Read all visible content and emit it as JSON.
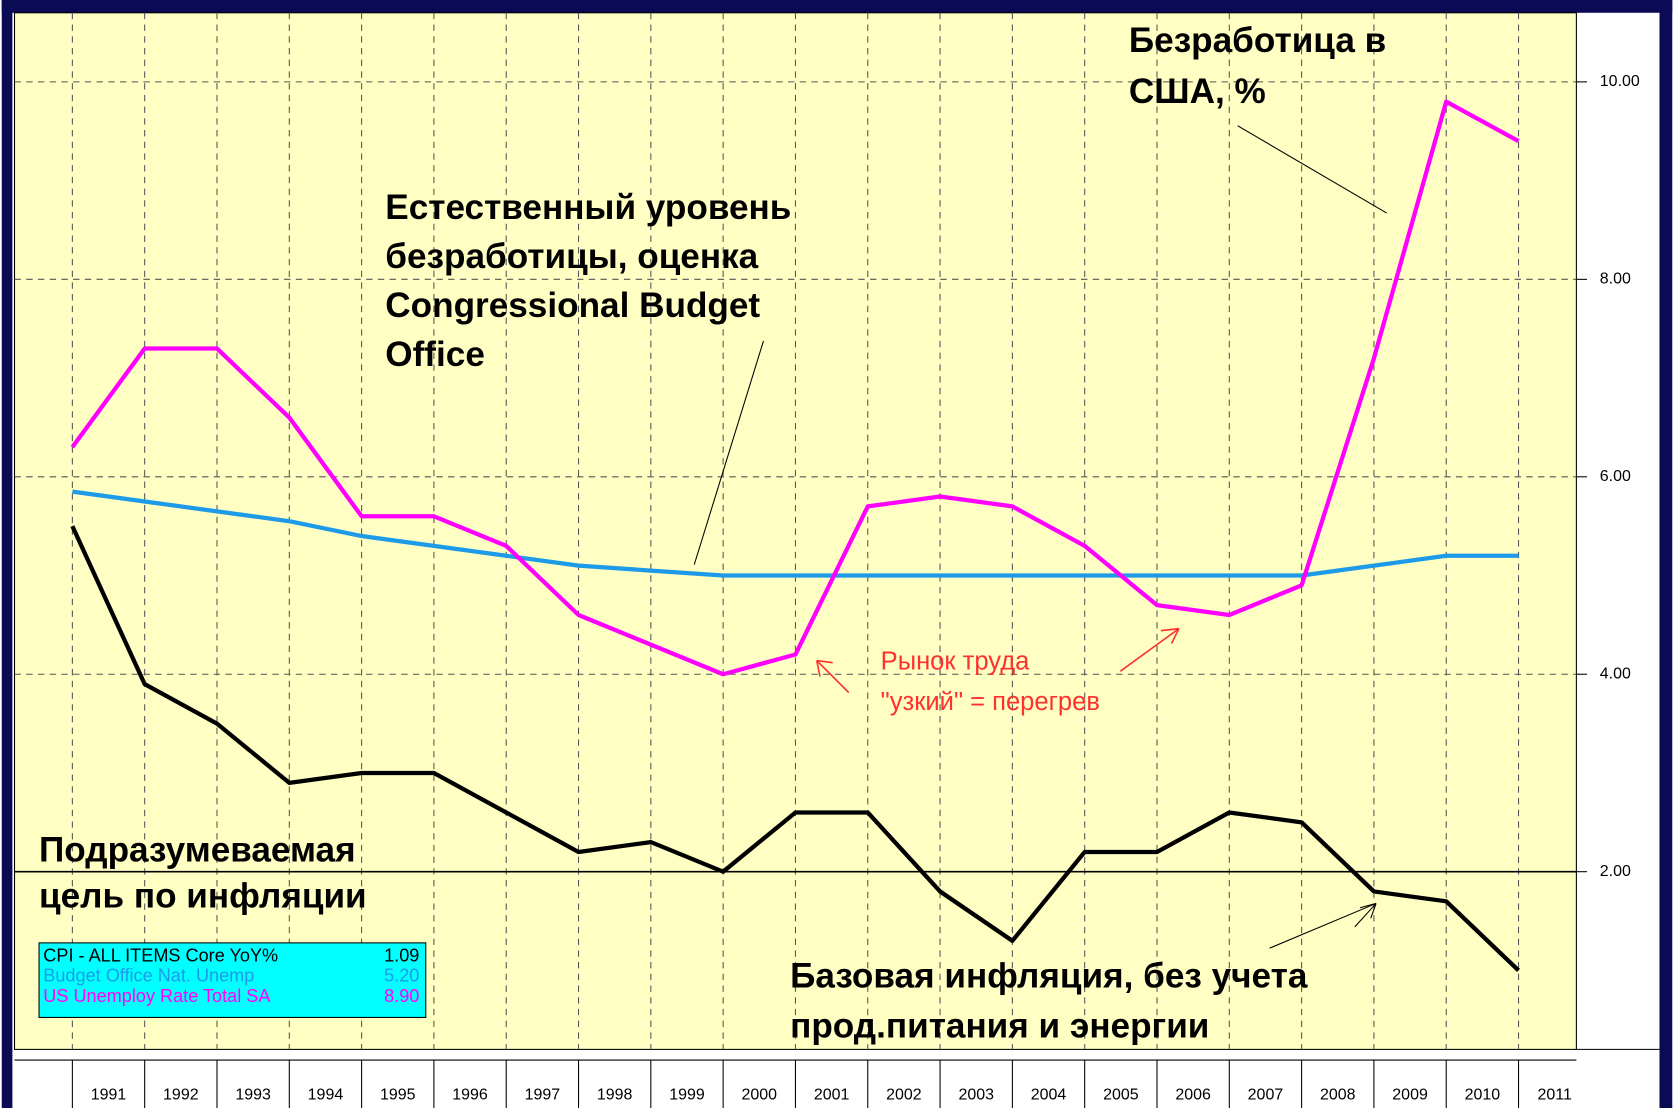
{
  "chart_data": {
    "type": "line",
    "xlim": [
      1990.2,
      2011.8
    ],
    "xticks": [
      1991,
      1992,
      1993,
      1994,
      1995,
      1996,
      1997,
      1998,
      1999,
      2000,
      2001,
      2002,
      2003,
      2004,
      2005,
      2006,
      2007,
      2008,
      2009,
      2010,
      2011
    ],
    "ylim": [
      0.2,
      10.7
    ],
    "yticks": [
      {
        "value": 2,
        "label": "2.00"
      },
      {
        "value": 4,
        "label": "4.00"
      },
      {
        "value": 6,
        "label": "6.00"
      },
      {
        "value": 8,
        "label": "8.00"
      },
      {
        "value": 10,
        "label": "10.00"
      }
    ],
    "grid": true,
    "reference_line": 2,
    "x": [
      1991,
      1992,
      1993,
      1994,
      1995,
      1996,
      1997,
      1998,
      1999,
      2000,
      2001,
      2002,
      2003,
      2004,
      2005,
      2006,
      2007,
      2008,
      2009,
      2010,
      2011
    ],
    "series": [
      {
        "name": "CPI - ALL ITEMS Core YoY%",
        "color": "#000000",
        "latest": {
          "value": 1.09,
          "label": "1.09"
        },
        "values": [
          5.5,
          3.9,
          3.5,
          2.9,
          3.0,
          3.0,
          2.6,
          2.2,
          2.3,
          2.0,
          2.6,
          2.6,
          1.8,
          1.3,
          2.2,
          2.2,
          2.6,
          2.5,
          1.8,
          1.7,
          1.0
        ]
      },
      {
        "name": "Budget Office  Nat. Unemp",
        "color": "#1e9be8",
        "latest": {
          "value": 5.2,
          "label": "5.20"
        },
        "values": [
          5.85,
          5.75,
          5.65,
          5.55,
          5.4,
          5.3,
          5.2,
          5.1,
          5.05,
          5.0,
          5.0,
          5.0,
          5.0,
          5.0,
          5.0,
          5.0,
          5.0,
          5.0,
          5.1,
          5.2,
          5.2
        ]
      },
      {
        "name": "US Unemploy Rate Total SA",
        "color": "#ff00ff",
        "latest": {
          "value": 8.9,
          "label": "8.90"
        },
        "values": [
          6.3,
          7.3,
          7.3,
          6.6,
          5.6,
          5.6,
          5.3,
          4.6,
          4.3,
          4.0,
          4.2,
          5.7,
          5.8,
          5.7,
          5.3,
          4.7,
          4.6,
          4.9,
          7.2,
          9.8,
          9.4
        ]
      }
    ],
    "annotations": [
      {
        "lines": [
          "Безработица в",
          "США, %"
        ]
      },
      {
        "lines": [
          "Естественный уровень",
          "безработицы, оценка",
          "Congressional Budget",
          "Office"
        ]
      },
      {
        "lines": [
          "Подразумеваемая",
          "цель по инфляции"
        ]
      },
      {
        "lines": [
          "Базовая инфляция, без учета",
          "прод.питания и энергии"
        ]
      },
      {
        "lines": [
          "Рынок труда",
          "\"узкий\" = перегрев"
        ]
      }
    ]
  }
}
